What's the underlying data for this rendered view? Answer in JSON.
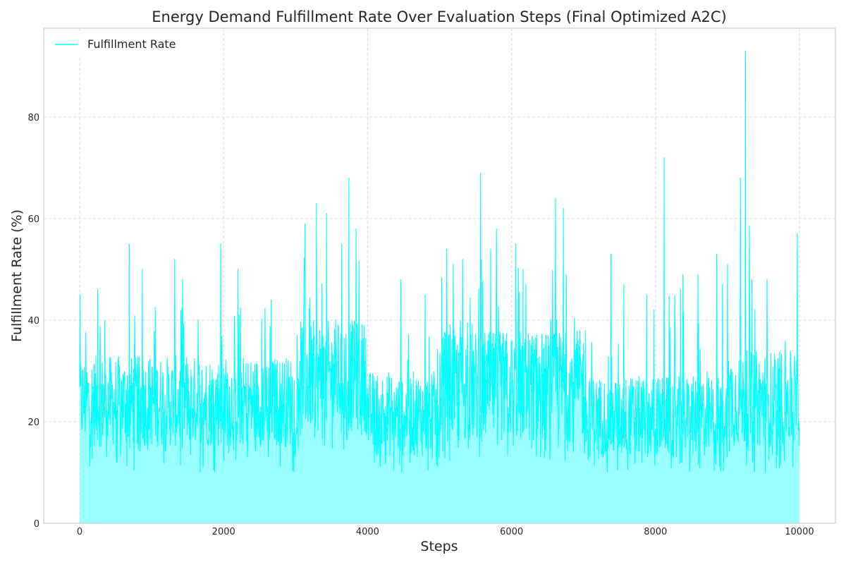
{
  "chart_data": {
    "type": "area",
    "title": "Energy Demand Fulfillment Rate Over Evaluation Steps (Final Optimized A2C)",
    "xlabel": "Steps",
    "ylabel": "Fulfillment Rate (%)",
    "xlim": [
      -500,
      10500
    ],
    "ylim": [
      0,
      97.5
    ],
    "xticks": [
      0,
      2000,
      4000,
      6000,
      8000,
      10000
    ],
    "yticks": [
      0,
      20,
      40,
      60,
      80
    ],
    "grid": true,
    "legend_position": "upper-left",
    "series": [
      {
        "name": "Fulfillment Rate",
        "color": "#00ffff",
        "fill_color": "#99ffff",
        "x_range": [
          0,
          10000
        ],
        "regimes": [
          {
            "x": [
              0,
              3000
            ],
            "band": [
              15,
              33
            ],
            "floor": 10,
            "peak_max": 55
          },
          {
            "x": [
              3000,
              4000
            ],
            "band": [
              18,
              40
            ],
            "floor": 14,
            "peak_max": 68
          },
          {
            "x": [
              4000,
              5000
            ],
            "band": [
              13,
              30
            ],
            "floor": 10,
            "peak_max": 48
          },
          {
            "x": [
              5000,
              7000
            ],
            "band": [
              16,
              38
            ],
            "floor": 12,
            "peak_max": 69
          },
          {
            "x": [
              7000,
              9000
            ],
            "band": [
              13,
              29
            ],
            "floor": 10,
            "peak_max": 72
          },
          {
            "x": [
              9000,
              10000
            ],
            "band": [
              15,
              34
            ],
            "floor": 10,
            "peak_max": 93
          }
        ],
        "peaks": [
          [
            5,
            45
          ],
          [
            250,
            46
          ],
          [
            690,
            55
          ],
          [
            870,
            50
          ],
          [
            1320,
            52
          ],
          [
            1430,
            48
          ],
          [
            1960,
            55
          ],
          [
            2200,
            50
          ],
          [
            2660,
            44
          ],
          [
            3130,
            59
          ],
          [
            3290,
            63
          ],
          [
            3430,
            61
          ],
          [
            3640,
            55
          ],
          [
            3740,
            68
          ],
          [
            3840,
            58
          ],
          [
            4460,
            48
          ],
          [
            4800,
            45
          ],
          [
            5100,
            54
          ],
          [
            5190,
            51
          ],
          [
            5320,
            52
          ],
          [
            5570,
            69
          ],
          [
            5710,
            54
          ],
          [
            5790,
            58
          ],
          [
            6060,
            55
          ],
          [
            6200,
            47
          ],
          [
            6610,
            64
          ],
          [
            6720,
            62
          ],
          [
            6760,
            49
          ],
          [
            7380,
            53
          ],
          [
            7560,
            47
          ],
          [
            7980,
            42
          ],
          [
            8120,
            72
          ],
          [
            8380,
            49
          ],
          [
            8590,
            49
          ],
          [
            8850,
            53
          ],
          [
            9000,
            51
          ],
          [
            9180,
            68
          ],
          [
            9250,
            93
          ],
          [
            9340,
            48
          ],
          [
            9550,
            48
          ],
          [
            9970,
            57
          ]
        ]
      }
    ]
  }
}
